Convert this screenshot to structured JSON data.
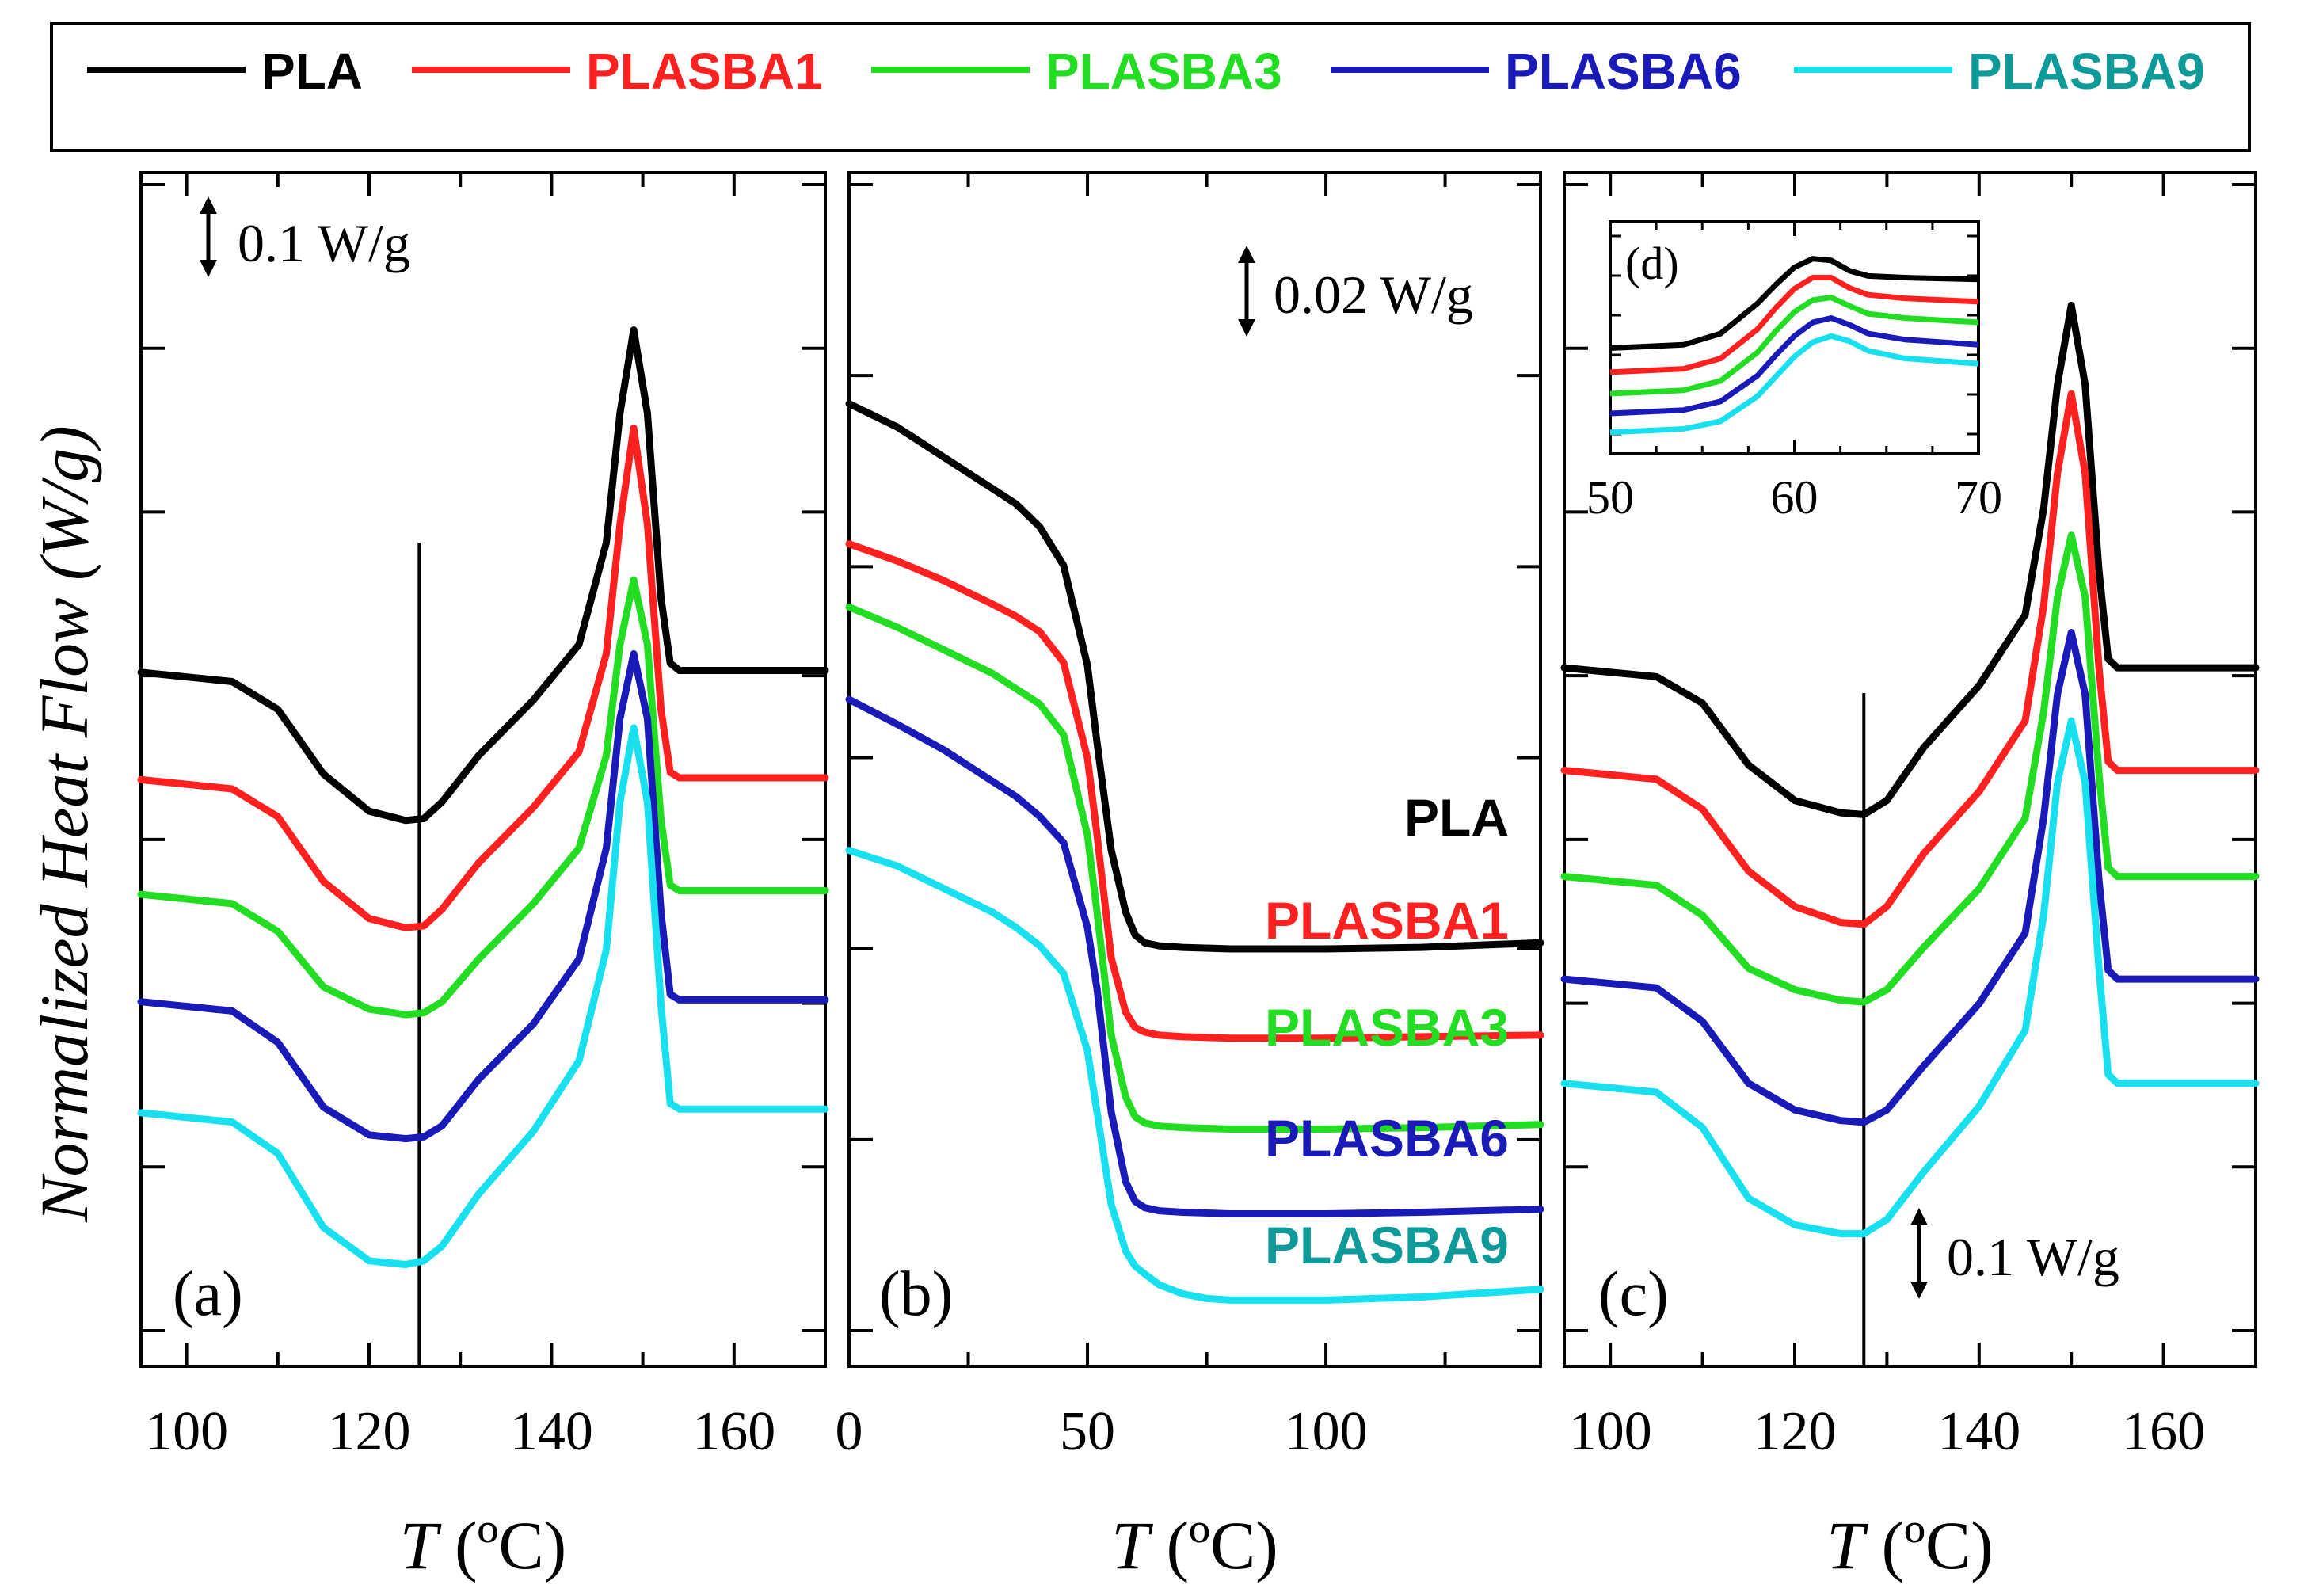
{
  "figure": {
    "ylabel": "Normalized Heat Flow (W/g)",
    "legend": [
      {
        "name": "PLA",
        "color": "#000000",
        "text_color": "#000000"
      },
      {
        "name": "PLASBA1",
        "color": "#ff2020",
        "text_color": "#ff2020"
      },
      {
        "name": "PLASBA3",
        "color": "#22dd22",
        "text_color": "#22dd22"
      },
      {
        "name": "PLASBA6",
        "color": "#1a1ab8",
        "text_color": "#1a1ab8"
      },
      {
        "name": "PLASBA9",
        "color": "#18e0ee",
        "text_color": "#0f9a9a"
      }
    ]
  },
  "chart_data": [
    {
      "type": "line",
      "panel_label": "(a)",
      "xlabel_italic": "T",
      "xlabel_unit": " (ºC)",
      "xlim": [
        95,
        170
      ],
      "xticks": [
        100,
        120,
        140,
        160
      ],
      "scale_bar": "0.1 W/g",
      "vline_x": 125.5,
      "series": [
        {
          "name": "PLA",
          "x": [
            95,
            105,
            110,
            115,
            120,
            124,
            126,
            128,
            132,
            138,
            143,
            146,
            147.5,
            149,
            150.5,
            152,
            153,
            154,
            158,
            170
          ],
          "y": [
            3.2,
            3.15,
            3.0,
            2.65,
            2.45,
            2.4,
            2.41,
            2.5,
            2.75,
            3.05,
            3.35,
            3.9,
            4.6,
            5.05,
            4.6,
            3.6,
            3.25,
            3.21,
            3.21,
            3.21
          ]
        },
        {
          "name": "PLASBA1",
          "x": [
            95,
            105,
            110,
            115,
            120,
            124,
            126,
            128,
            132,
            138,
            143,
            146,
            147.5,
            149,
            150.5,
            152,
            153,
            154,
            158,
            170
          ],
          "y": [
            2.62,
            2.57,
            2.42,
            2.07,
            1.87,
            1.82,
            1.83,
            1.92,
            2.17,
            2.47,
            2.77,
            3.3,
            4.0,
            4.52,
            4.0,
            3.0,
            2.66,
            2.63,
            2.63,
            2.63
          ]
        },
        {
          "name": "PLASBA3",
          "x": [
            95,
            105,
            110,
            115,
            120,
            124,
            126,
            128,
            132,
            138,
            143,
            146,
            147.5,
            149,
            150.5,
            152,
            153,
            154,
            158,
            170
          ],
          "y": [
            2.0,
            1.95,
            1.8,
            1.5,
            1.38,
            1.35,
            1.36,
            1.42,
            1.65,
            1.95,
            2.25,
            2.75,
            3.35,
            3.7,
            3.35,
            2.4,
            2.05,
            2.02,
            2.02,
            2.02
          ]
        },
        {
          "name": "PLASBA6",
          "x": [
            95,
            105,
            110,
            115,
            120,
            124,
            126,
            128,
            132,
            138,
            143,
            146,
            147.5,
            149,
            150.5,
            152,
            153,
            154,
            158,
            170
          ],
          "y": [
            1.42,
            1.37,
            1.2,
            0.85,
            0.7,
            0.68,
            0.69,
            0.75,
            1.0,
            1.3,
            1.65,
            2.25,
            2.95,
            3.3,
            2.95,
            1.9,
            1.46,
            1.43,
            1.43,
            1.43
          ]
        },
        {
          "name": "PLASBA9",
          "x": [
            95,
            105,
            110,
            115,
            120,
            124,
            126,
            128,
            132,
            138,
            143,
            146,
            147.5,
            149,
            150.5,
            152,
            153,
            154,
            158,
            170
          ],
          "y": [
            0.82,
            0.77,
            0.6,
            0.2,
            0.02,
            0.0,
            0.02,
            0.1,
            0.38,
            0.72,
            1.1,
            1.7,
            2.5,
            2.9,
            2.5,
            1.4,
            0.87,
            0.84,
            0.84,
            0.84
          ]
        }
      ]
    },
    {
      "type": "line",
      "panel_label": "(b)",
      "xlabel_italic": "T",
      "xlabel_unit": " (ºC)",
      "xlim": [
        0,
        145
      ],
      "xticks": [
        0,
        50,
        100
      ],
      "scale_bar": "0.02 W/g",
      "series": [
        {
          "name": "PLA",
          "label": "PLA",
          "x": [
            0,
            10,
            20,
            30,
            35,
            40,
            45,
            50,
            52,
            55,
            58,
            60,
            62,
            65,
            70,
            80,
            100,
            120,
            145
          ],
          "y": [
            5.9,
            5.75,
            5.55,
            5.35,
            5.25,
            5.1,
            4.85,
            4.2,
            3.7,
            3.0,
            2.6,
            2.45,
            2.4,
            2.38,
            2.37,
            2.36,
            2.36,
            2.37,
            2.4
          ]
        },
        {
          "name": "PLASBA1",
          "label": "PLASBA1",
          "x": [
            0,
            10,
            20,
            30,
            35,
            40,
            45,
            50,
            52,
            55,
            58,
            60,
            62,
            65,
            70,
            80,
            100,
            120,
            145
          ],
          "y": [
            4.99,
            4.88,
            4.75,
            4.6,
            4.52,
            4.42,
            4.22,
            3.6,
            3.1,
            2.3,
            1.95,
            1.85,
            1.82,
            1.8,
            1.79,
            1.78,
            1.78,
            1.79,
            1.8
          ]
        },
        {
          "name": "PLASBA3",
          "label": "PLASBA3",
          "x": [
            0,
            10,
            20,
            30,
            35,
            40,
            45,
            50,
            52,
            55,
            58,
            60,
            62,
            65,
            70,
            80,
            100,
            120,
            145
          ],
          "y": [
            4.58,
            4.45,
            4.3,
            4.15,
            4.05,
            3.95,
            3.75,
            3.1,
            2.6,
            1.8,
            1.4,
            1.27,
            1.23,
            1.21,
            1.2,
            1.19,
            1.19,
            1.2,
            1.22
          ]
        },
        {
          "name": "PLASBA6",
          "label": "PLASBA6",
          "x": [
            0,
            10,
            20,
            30,
            35,
            40,
            45,
            50,
            52,
            55,
            58,
            60,
            62,
            65,
            70,
            80,
            100,
            120,
            145
          ],
          "y": [
            3.98,
            3.82,
            3.65,
            3.45,
            3.35,
            3.22,
            3.05,
            2.5,
            2.1,
            1.3,
            0.85,
            0.72,
            0.68,
            0.66,
            0.65,
            0.64,
            0.64,
            0.65,
            0.67
          ]
        },
        {
          "name": "PLASBA9",
          "label": "PLASBA9",
          "x": [
            0,
            10,
            20,
            30,
            35,
            40,
            45,
            50,
            52,
            55,
            58,
            60,
            62,
            65,
            70,
            75,
            80,
            100,
            120,
            145
          ],
          "y": [
            3.0,
            2.9,
            2.75,
            2.6,
            2.5,
            2.38,
            2.2,
            1.7,
            1.3,
            0.7,
            0.4,
            0.3,
            0.25,
            0.18,
            0.12,
            0.09,
            0.08,
            0.08,
            0.1,
            0.15
          ]
        }
      ]
    },
    {
      "type": "line",
      "panel_label": "(c)",
      "xlabel_italic": "T",
      "xlabel_unit": " (ºC)",
      "xlim": [
        95,
        170
      ],
      "xticks": [
        100,
        120,
        140,
        160
      ],
      "scale_bar": "0.1 W/g",
      "vline_x": 127.5,
      "series": [
        {
          "name": "PLA",
          "x": [
            95,
            105,
            110,
            115,
            120,
            125,
            127.5,
            130,
            134,
            140,
            145,
            147,
            148.5,
            150,
            151.5,
            153,
            154,
            155,
            160,
            170
          ],
          "y": [
            3.4,
            3.35,
            3.2,
            2.85,
            2.65,
            2.58,
            2.57,
            2.65,
            2.95,
            3.3,
            3.7,
            4.3,
            5.0,
            5.45,
            5.0,
            3.95,
            3.45,
            3.4,
            3.4,
            3.4
          ]
        },
        {
          "name": "PLASBA1",
          "x": [
            95,
            105,
            110,
            115,
            120,
            125,
            127.5,
            130,
            134,
            140,
            145,
            147,
            148.5,
            150,
            151.5,
            153,
            154,
            155,
            160,
            170
          ],
          "y": [
            2.82,
            2.77,
            2.6,
            2.25,
            2.05,
            1.96,
            1.95,
            2.05,
            2.35,
            2.7,
            3.1,
            3.75,
            4.5,
            4.95,
            4.5,
            3.4,
            2.87,
            2.82,
            2.82,
            2.82
          ]
        },
        {
          "name": "PLASBA3",
          "x": [
            95,
            105,
            110,
            115,
            120,
            125,
            127.5,
            130,
            134,
            140,
            145,
            147,
            148.5,
            150,
            151.5,
            153,
            154,
            155,
            160,
            170
          ],
          "y": [
            2.22,
            2.17,
            2.0,
            1.7,
            1.58,
            1.52,
            1.51,
            1.58,
            1.82,
            2.15,
            2.55,
            3.15,
            3.8,
            4.15,
            3.8,
            2.8,
            2.27,
            2.22,
            2.22,
            2.22
          ]
        },
        {
          "name": "PLASBA6",
          "x": [
            95,
            105,
            110,
            115,
            120,
            125,
            127.5,
            130,
            134,
            140,
            145,
            147,
            148.5,
            150,
            151.5,
            153,
            154,
            155,
            160,
            170
          ],
          "y": [
            1.64,
            1.59,
            1.4,
            1.05,
            0.9,
            0.84,
            0.83,
            0.9,
            1.15,
            1.5,
            1.9,
            2.55,
            3.25,
            3.6,
            3.25,
            2.2,
            1.69,
            1.64,
            1.64,
            1.64
          ]
        },
        {
          "name": "PLASBA9",
          "x": [
            95,
            105,
            110,
            115,
            120,
            125,
            127.5,
            130,
            134,
            140,
            145,
            147,
            148.5,
            150,
            151.5,
            153,
            154,
            155,
            160,
            170
          ],
          "y": [
            1.05,
            1.0,
            0.8,
            0.4,
            0.25,
            0.2,
            0.2,
            0.28,
            0.55,
            0.92,
            1.35,
            2.0,
            2.75,
            3.1,
            2.75,
            1.7,
            1.1,
            1.05,
            1.05,
            1.05
          ]
        }
      ]
    },
    {
      "type": "line",
      "panel_label": "(d)",
      "xlim": [
        50,
        70
      ],
      "xticks": [
        50,
        60,
        70
      ],
      "series": [
        {
          "name": "PLA",
          "x": [
            50,
            54,
            56,
            58,
            59,
            60,
            61,
            62,
            63,
            64,
            66,
            70
          ],
          "y": [
            0.98,
            1.02,
            1.15,
            1.5,
            1.72,
            1.92,
            2.02,
            2.0,
            1.88,
            1.82,
            1.8,
            1.78
          ]
        },
        {
          "name": "PLASBA1",
          "x": [
            50,
            54,
            56,
            58,
            59,
            60,
            61,
            62,
            63,
            64,
            66,
            70
          ],
          "y": [
            0.7,
            0.74,
            0.86,
            1.2,
            1.45,
            1.67,
            1.8,
            1.8,
            1.68,
            1.6,
            1.56,
            1.52
          ]
        },
        {
          "name": "PLASBA3",
          "x": [
            50,
            54,
            56,
            58,
            59,
            60,
            61,
            62,
            63,
            64,
            66,
            70
          ],
          "y": [
            0.45,
            0.49,
            0.6,
            0.93,
            1.18,
            1.4,
            1.54,
            1.57,
            1.47,
            1.38,
            1.33,
            1.28
          ]
        },
        {
          "name": "PLASBA6",
          "x": [
            50,
            54,
            56,
            58,
            59,
            60,
            61,
            62,
            63,
            64,
            66,
            70
          ],
          "y": [
            0.22,
            0.26,
            0.36,
            0.66,
            0.9,
            1.12,
            1.28,
            1.33,
            1.25,
            1.15,
            1.08,
            1.02
          ]
        },
        {
          "name": "PLASBA9",
          "x": [
            50,
            54,
            56,
            58,
            59,
            60,
            61,
            62,
            63,
            64,
            66,
            70
          ],
          "y": [
            0.0,
            0.04,
            0.13,
            0.42,
            0.65,
            0.88,
            1.05,
            1.12,
            1.06,
            0.95,
            0.86,
            0.8
          ]
        }
      ]
    }
  ]
}
